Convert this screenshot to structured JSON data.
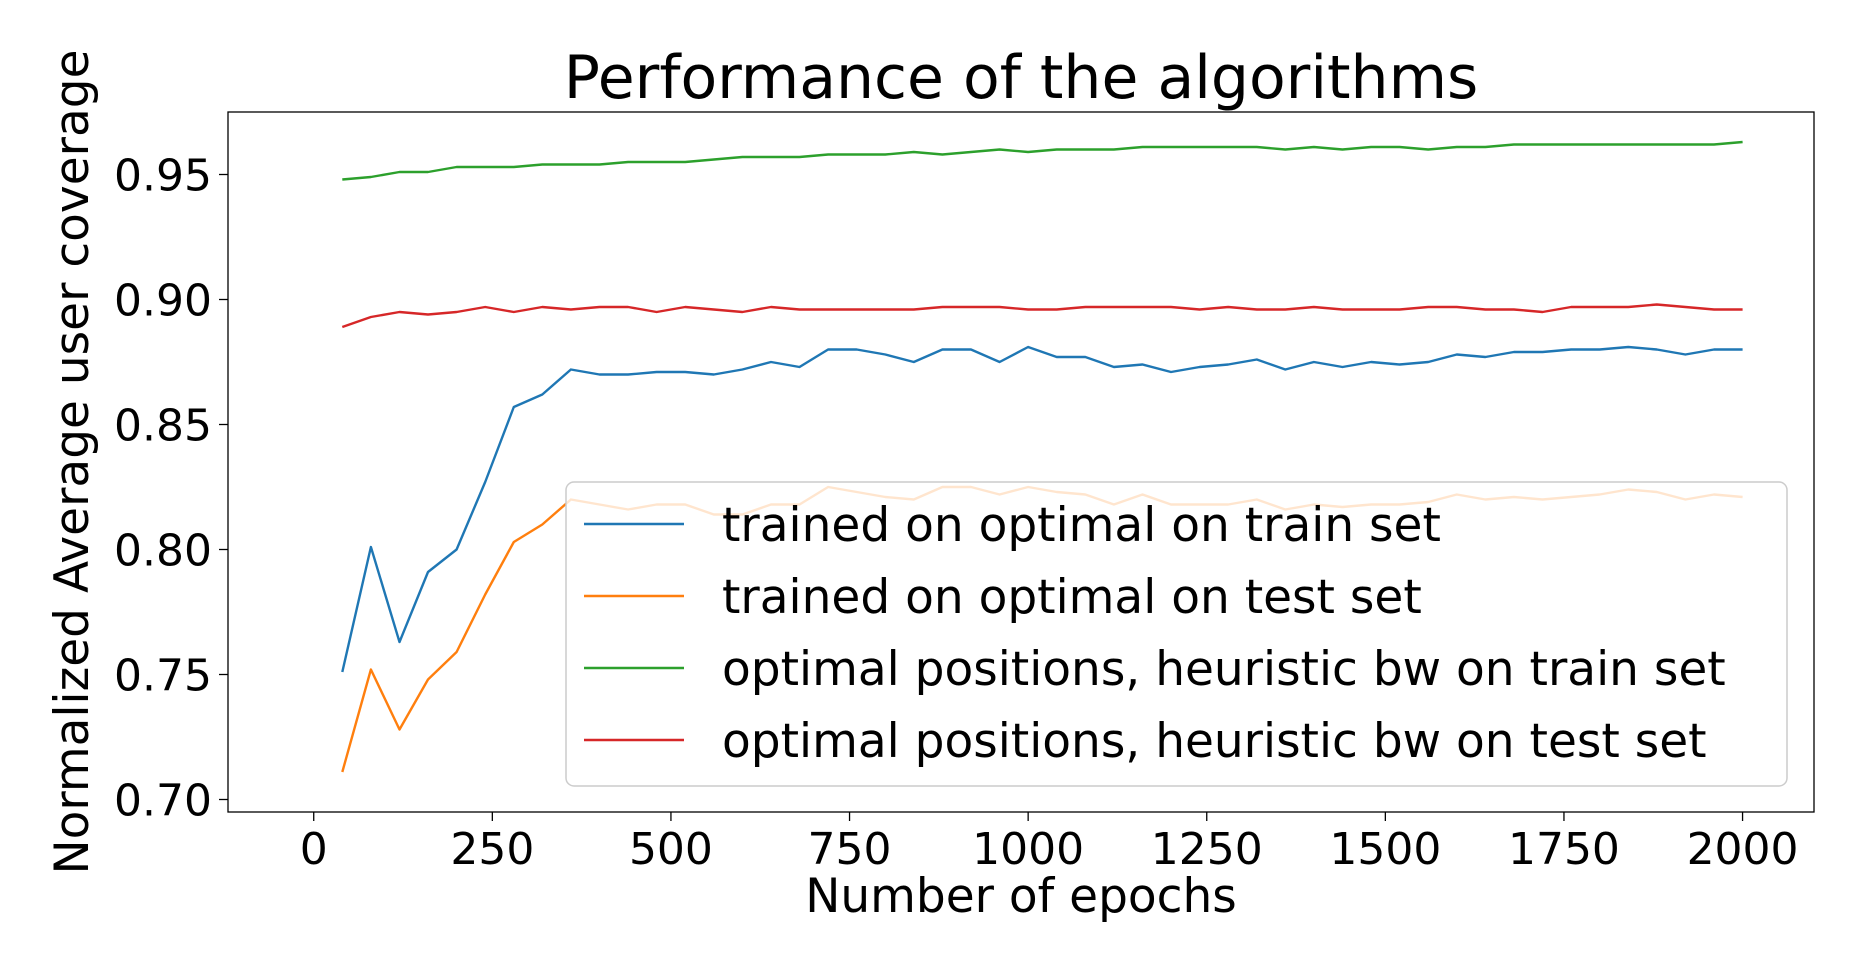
{
  "chart_data": {
    "type": "line",
    "title": "Performance of the algorithms",
    "xlabel": "Number of epochs",
    "ylabel": "Normalized Average user coverage",
    "xlim": [
      -120,
      2100
    ],
    "ylim": [
      0.695,
      0.975
    ],
    "xticks": [
      0,
      250,
      500,
      750,
      1000,
      1250,
      1500,
      1750,
      2000
    ],
    "yticks": [
      0.7,
      0.75,
      0.8,
      0.85,
      0.9,
      0.95
    ],
    "legend_position": "lower-right",
    "x": [
      40,
      80,
      120,
      160,
      200,
      240,
      280,
      320,
      360,
      400,
      440,
      480,
      520,
      560,
      600,
      640,
      680,
      720,
      760,
      800,
      840,
      880,
      920,
      960,
      1000,
      1040,
      1080,
      1120,
      1160,
      1200,
      1240,
      1280,
      1320,
      1360,
      1400,
      1440,
      1480,
      1520,
      1560,
      1600,
      1640,
      1680,
      1720,
      1760,
      1800,
      1840,
      1880,
      1920,
      1960,
      2000
    ],
    "series": [
      {
        "name": "trained on optimal on train set",
        "color": "#1f77b4",
        "values": [
          0.751,
          0.801,
          0.763,
          0.791,
          0.8,
          0.827,
          0.857,
          0.862,
          0.872,
          0.87,
          0.87,
          0.871,
          0.871,
          0.87,
          0.872,
          0.875,
          0.873,
          0.88,
          0.88,
          0.878,
          0.875,
          0.88,
          0.88,
          0.875,
          0.881,
          0.877,
          0.877,
          0.873,
          0.874,
          0.871,
          0.873,
          0.874,
          0.876,
          0.872,
          0.875,
          0.873,
          0.875,
          0.874,
          0.875,
          0.878,
          0.877,
          0.879,
          0.879,
          0.88,
          0.88,
          0.881,
          0.88,
          0.878,
          0.88,
          0.88
        ]
      },
      {
        "name": "trained on optimal on test set",
        "color": "#ff7f0e",
        "values": [
          0.711,
          0.752,
          0.728,
          0.748,
          0.759,
          0.782,
          0.803,
          0.81,
          0.82,
          0.818,
          0.816,
          0.818,
          0.818,
          0.814,
          0.814,
          0.818,
          0.818,
          0.825,
          0.823,
          0.821,
          0.82,
          0.825,
          0.825,
          0.822,
          0.825,
          0.823,
          0.822,
          0.818,
          0.822,
          0.818,
          0.818,
          0.818,
          0.82,
          0.816,
          0.818,
          0.817,
          0.818,
          0.818,
          0.819,
          0.822,
          0.82,
          0.821,
          0.82,
          0.821,
          0.822,
          0.824,
          0.823,
          0.82,
          0.822,
          0.821
        ]
      },
      {
        "name": "optimal positions, heuristic bw on train set",
        "color": "#2ca02c",
        "values": [
          0.948,
          0.949,
          0.951,
          0.951,
          0.953,
          0.953,
          0.953,
          0.954,
          0.954,
          0.954,
          0.955,
          0.955,
          0.955,
          0.956,
          0.957,
          0.957,
          0.957,
          0.958,
          0.958,
          0.958,
          0.959,
          0.958,
          0.959,
          0.96,
          0.959,
          0.96,
          0.96,
          0.96,
          0.961,
          0.961,
          0.961,
          0.961,
          0.961,
          0.96,
          0.961,
          0.96,
          0.961,
          0.961,
          0.96,
          0.961,
          0.961,
          0.962,
          0.962,
          0.962,
          0.962,
          0.962,
          0.962,
          0.962,
          0.962,
          0.963
        ]
      },
      {
        "name": "optimal positions, heuristic bw on test set",
        "color": "#d62728",
        "values": [
          0.889,
          0.893,
          0.895,
          0.894,
          0.895,
          0.897,
          0.895,
          0.897,
          0.896,
          0.897,
          0.897,
          0.895,
          0.897,
          0.896,
          0.895,
          0.897,
          0.896,
          0.896,
          0.896,
          0.896,
          0.896,
          0.897,
          0.897,
          0.897,
          0.896,
          0.896,
          0.897,
          0.897,
          0.897,
          0.897,
          0.896,
          0.897,
          0.896,
          0.896,
          0.897,
          0.896,
          0.896,
          0.896,
          0.897,
          0.897,
          0.896,
          0.896,
          0.895,
          0.897,
          0.897,
          0.897,
          0.898,
          0.897,
          0.896,
          0.896
        ]
      }
    ]
  }
}
